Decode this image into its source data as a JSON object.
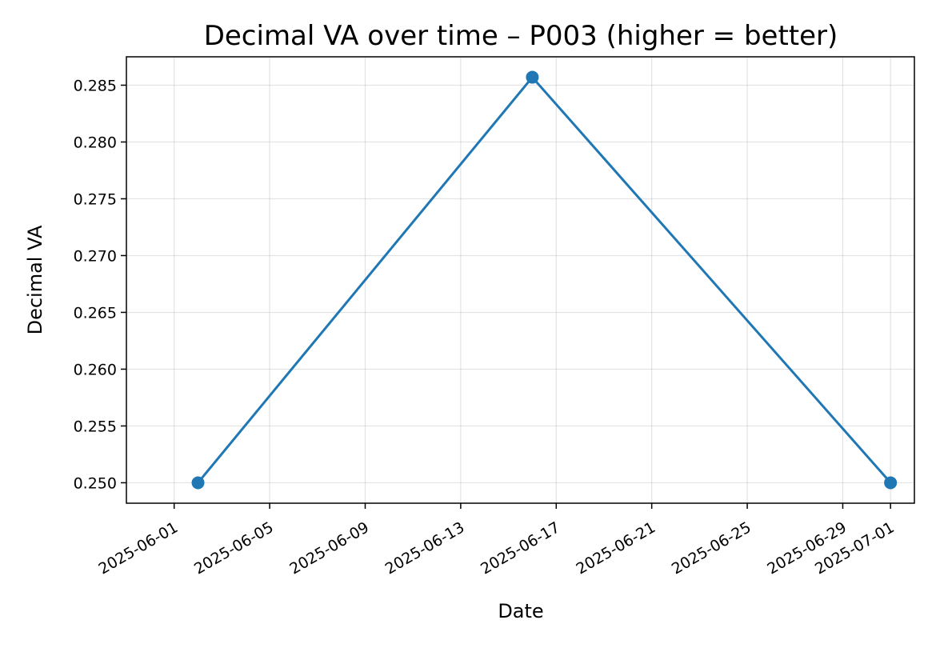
{
  "chart_data": {
    "type": "line",
    "title": "Decimal VA over time – P003 (higher = better)",
    "xlabel": "Date",
    "ylabel": "Decimal VA",
    "grid": true,
    "series": [
      {
        "x": [
          "2025-06-02",
          "2025-06-16",
          "2025-07-01"
        ],
        "values": [
          0.25,
          0.2857,
          0.25
        ],
        "color": "#1f77b4",
        "marker": "circle"
      }
    ],
    "xlim": [
      "2025-05-30",
      "2025-07-02"
    ],
    "ylim": [
      0.2482,
      0.2875
    ],
    "x_ticks": [
      "2025-06-01",
      "2025-06-05",
      "2025-06-09",
      "2025-06-13",
      "2025-06-17",
      "2025-06-21",
      "2025-06-25",
      "2025-06-29",
      "2025-07-01"
    ],
    "y_ticks": [
      "0.250",
      "0.255",
      "0.260",
      "0.265",
      "0.270",
      "0.275",
      "0.280",
      "0.285"
    ]
  }
}
